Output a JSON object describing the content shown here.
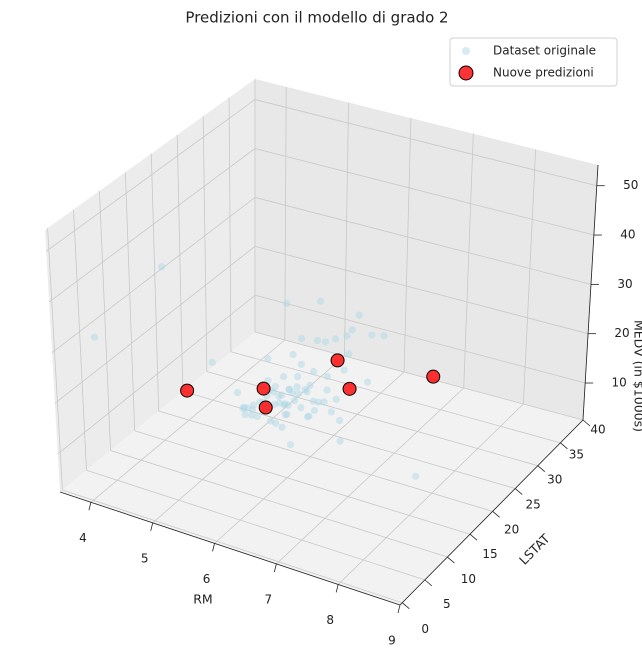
{
  "chart_data": {
    "type": "scatter3d",
    "title": "Predizioni con il modello di grado 2",
    "xlabel": "RM",
    "ylabel": "LSTAT",
    "zlabel": "MEDV (in $1000s)",
    "xlim": [
      3.5,
      9.0
    ],
    "ylim": [
      -0.5,
      40
    ],
    "zlim": [
      2.5,
      54.2
    ],
    "xticks": [
      4,
      5,
      6,
      7,
      8,
      9
    ],
    "yticks": [
      0,
      5,
      10,
      15,
      20,
      25,
      30,
      35,
      40
    ],
    "zticks": [
      10,
      20,
      30,
      40,
      50
    ],
    "grid": true,
    "legend": "upper right",
    "series": [
      {
        "name": "Dataset originale",
        "color": "#add8e6",
        "alpha": 0.5,
        "x": [
          6.58,
          6.42,
          7.19,
          7.0,
          7.15,
          6.43,
          6.01,
          6.17,
          5.63,
          6.0,
          6.38,
          6.01,
          5.89,
          5.95,
          6.1,
          5.83,
          5.94,
          5.99,
          5.46,
          5.73,
          5.57,
          5.96,
          6.14,
          5.81,
          5.92,
          5.6,
          5.81,
          6.05,
          6.5,
          6.67,
          5.71,
          6.07,
          5.95,
          5.7,
          6.1,
          5.93,
          5.84,
          5.85,
          5.97,
          6.6,
          7.02,
          6.77,
          6.17,
          6.21,
          6.07,
          5.68,
          5.79,
          6.03,
          5.4,
          5.6,
          8.07,
          7.82,
          8.78,
          8.38,
          3.56,
          4.97,
          4.88,
          5.0,
          4.65,
          5.45,
          6.22,
          5.27,
          6.43,
          7.36,
          6.98,
          6.17,
          5.39,
          6.35,
          7.52,
          7.85,
          5.41,
          6.63,
          4.52,
          4.13,
          5.88,
          6.54,
          6.86,
          7.27
        ],
        "y": [
          4.98,
          9.14,
          4.03,
          2.94,
          5.33,
          5.21,
          12.43,
          19.15,
          29.93,
          17.1,
          20.45,
          13.27,
          15.71,
          8.26,
          10.26,
          8.47,
          6.58,
          14.67,
          11.69,
          11.28,
          21.02,
          13.83,
          18.72,
          19.88,
          16.3,
          16.51,
          14.81,
          17.28,
          12.8,
          11.98,
          22.6,
          13.04,
          27.71,
          18.35,
          20.34,
          9.68,
          11.41,
          8.77,
          10.13,
          4.32,
          1.98,
          4.84,
          5.81,
          7.44,
          9.55,
          10.21,
          14.15,
          18.8,
          30.81,
          16.2,
          4.21,
          3.57,
          5.29,
          3.16,
          7.12,
          3.26,
          30.62,
          26.77,
          28.28,
          30.59,
          21.52,
          26.64,
          10.97,
          4.73,
          5.04,
          23.97,
          37.97,
          15.02,
          7.26,
          3.81,
          29.55,
          18.05,
          36.98,
          23.34,
          34.41,
          8.65,
          3.59,
          6.62
        ],
        "z": [
          24,
          21.6,
          34.7,
          33.4,
          36.2,
          28.7,
          22.9,
          27.1,
          16.5,
          18.9,
          15,
          18.9,
          21.7,
          20.4,
          18.2,
          19.9,
          23.1,
          17.5,
          20.2,
          18.2,
          13.6,
          19.6,
          15.2,
          14.5,
          15.6,
          13.9,
          16.6,
          14.8,
          18.4,
          21,
          12.7,
          14.5,
          13.2,
          13.1,
          13.5,
          18.9,
          20,
          21,
          24.7,
          30.8,
          34.9,
          26.6,
          25.3,
          24.7,
          21.2,
          19.3,
          20,
          16.6,
          14.4,
          19.4,
          38.7,
          43.8,
          21.9,
          50,
          27.5,
          50,
          10.2,
          5.6,
          10.5,
          5,
          11,
          10.4,
          22.9,
          31.5,
          37.2,
          7,
          13.8,
          16.1,
          43.1,
          48.5,
          23.7,
          9.6,
          7,
          11.9,
          14.4,
          16.5,
          50,
          34.6
        ]
      },
      {
        "name": "Nuove predizioni",
        "color": "#ff0000",
        "edgecolor": "#000000",
        "alpha": 0.8,
        "x": [
          4.1,
          5.35,
          5.5,
          6.2,
          6.4,
          7.6
        ],
        "y": [
          18.5,
          18.5,
          17,
          23,
          23,
          25
        ],
        "z": [
          10,
          15,
          13,
          20,
          15,
          20
        ]
      }
    ]
  }
}
